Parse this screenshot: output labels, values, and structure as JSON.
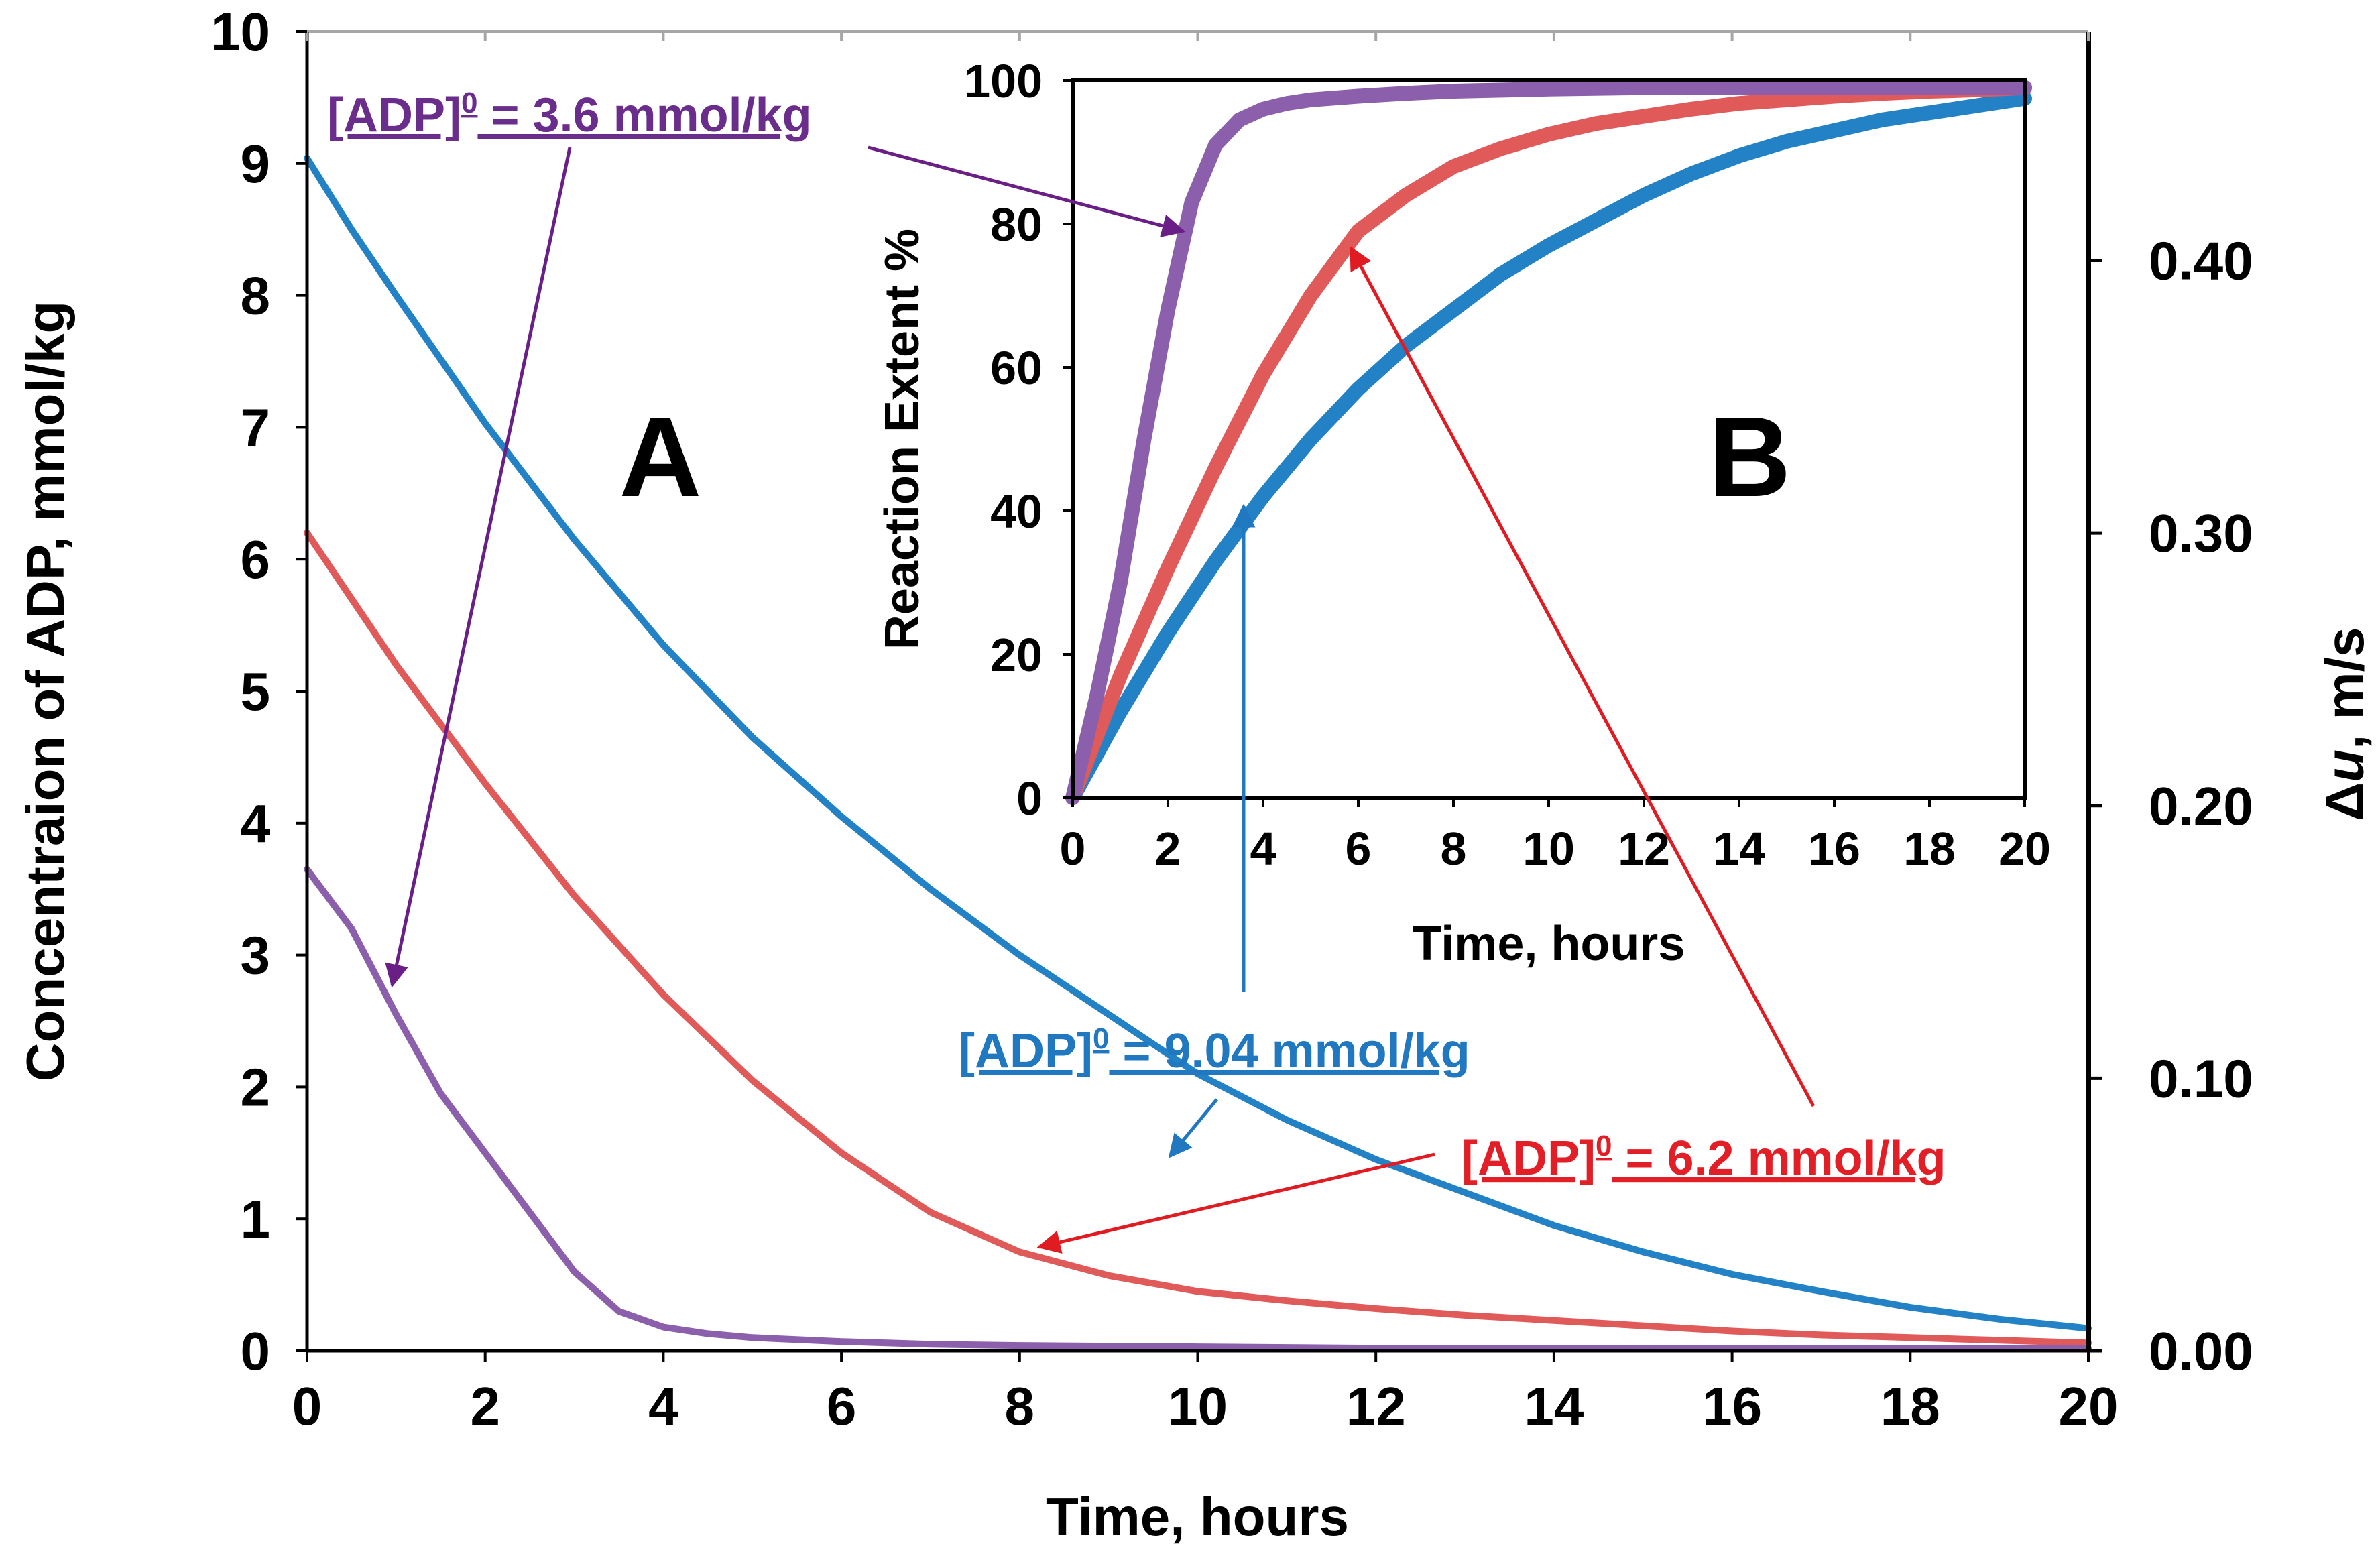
{
  "colors": {
    "blue": "#2382c6",
    "red": "#e05a5a",
    "purple": "#8b5fab",
    "blue_text": "#1f78c0",
    "red_text": "#e21f26",
    "purple_text": "#6b2d8c",
    "blue_arrow": "#1f78c0",
    "red_arrow": "#e11b22",
    "purple_arrow": "#6a1f86",
    "axis": "#000000"
  },
  "chart_data": [
    {
      "panel": "A",
      "type": "line",
      "xlabel": "Time, hours",
      "ylabel": "Concentraion of ADP, mmol/kg",
      "y2label_prefix": "Δ",
      "y2label_var": "u",
      "y2label_suffix": ", m/s",
      "xlim": [
        0,
        20
      ],
      "ylim": [
        0,
        10
      ],
      "y2lim": [
        0.0,
        0.484
      ],
      "xticks": [
        0,
        2,
        4,
        6,
        8,
        10,
        12,
        14,
        16,
        18,
        20
      ],
      "yticks": [
        0,
        1,
        2,
        3,
        4,
        5,
        6,
        7,
        8,
        9,
        10
      ],
      "y2ticks": [
        0.0,
        0.1,
        0.2,
        0.3,
        0.4
      ],
      "y2tick_labels": [
        "0.00",
        "0.10",
        "0.20",
        "0.30",
        "0.40"
      ],
      "series": [
        {
          "name": "[ADP]0 = 9.04 mmol/kg",
          "color_key": "blue",
          "x": [
            0,
            0.5,
            1,
            2,
            3,
            4,
            5,
            6,
            7,
            8,
            9,
            10,
            11,
            12,
            13,
            14,
            15,
            16,
            17,
            18,
            19,
            20
          ],
          "y": [
            9.04,
            8.5,
            8.0,
            7.03,
            6.15,
            5.35,
            4.65,
            4.05,
            3.5,
            3.0,
            2.55,
            2.1,
            1.75,
            1.45,
            1.2,
            0.95,
            0.75,
            0.58,
            0.45,
            0.33,
            0.24,
            0.17
          ]
        },
        {
          "name": "[ADP]0 = 6.2 mmol/kg",
          "color_key": "red",
          "x": [
            0,
            0.5,
            1,
            2,
            3,
            4,
            5,
            6,
            7,
            8,
            9,
            10,
            11,
            12,
            13,
            14,
            15,
            16,
            17,
            18,
            19,
            20
          ],
          "y": [
            6.2,
            5.7,
            5.2,
            4.3,
            3.45,
            2.7,
            2.05,
            1.5,
            1.05,
            0.75,
            0.57,
            0.45,
            0.38,
            0.32,
            0.27,
            0.23,
            0.19,
            0.15,
            0.12,
            0.1,
            0.08,
            0.06
          ]
        },
        {
          "name": "[ADP]0 = 3.6 mmol/kg",
          "color_key": "purple",
          "x": [
            0,
            0.5,
            1,
            1.5,
            2,
            2.5,
            3,
            3.5,
            4,
            4.5,
            5,
            6,
            7,
            8,
            10,
            12,
            14,
            16,
            18,
            20
          ],
          "y": [
            3.65,
            3.2,
            2.55,
            1.95,
            1.5,
            1.05,
            0.6,
            0.3,
            0.18,
            0.13,
            0.1,
            0.07,
            0.05,
            0.04,
            0.03,
            0.02,
            0.02,
            0.02,
            0.02,
            0.02
          ]
        }
      ]
    },
    {
      "panel": "B",
      "type": "line",
      "xlabel": "Time, hours",
      "ylabel": "Reaction Extent %",
      "xlim": [
        0,
        20
      ],
      "ylim": [
        0,
        100
      ],
      "xticks": [
        0,
        2,
        4,
        6,
        8,
        10,
        12,
        14,
        16,
        18,
        20
      ],
      "yticks": [
        0,
        20,
        40,
        60,
        80,
        100
      ],
      "series": [
        {
          "name": "[ADP]0 = 9.04 mmol/kg",
          "color_key": "blue",
          "x": [
            0,
            1,
            2,
            3,
            4,
            5,
            6,
            7,
            8,
            9,
            10,
            11,
            12,
            13,
            14,
            15,
            16,
            17,
            18,
            19,
            20
          ],
          "y": [
            0,
            12,
            23,
            33,
            42,
            50,
            57,
            63,
            68,
            73,
            77,
            80.5,
            84,
            87,
            89.5,
            91.5,
            93,
            94.5,
            95.5,
            96.5,
            97.5
          ]
        },
        {
          "name": "[ADP]0 = 6.2 mmol/kg",
          "color_key": "red",
          "x": [
            0,
            1,
            2,
            3,
            4,
            5,
            6,
            7,
            8,
            9,
            10,
            11,
            12,
            13,
            14,
            15,
            16,
            17,
            18,
            19,
            20
          ],
          "y": [
            0,
            17,
            32,
            46,
            59,
            70,
            79,
            84,
            88,
            90.5,
            92.5,
            94,
            95,
            96,
            96.8,
            97.3,
            97.8,
            98.2,
            98.5,
            98.7,
            99
          ]
        },
        {
          "name": "[ADP]0 = 3.6 mmol/kg",
          "color_key": "purple",
          "x": [
            0,
            0.5,
            1,
            1.5,
            2,
            2.5,
            3,
            3.5,
            4,
            4.5,
            5,
            6,
            7,
            8,
            10,
            12,
            14,
            16,
            18,
            20
          ],
          "y": [
            0,
            14,
            30,
            50,
            68,
            83,
            91,
            94.5,
            96,
            96.8,
            97.3,
            97.8,
            98.2,
            98.5,
            98.8,
            99,
            99,
            99,
            99,
            99
          ]
        }
      ]
    }
  ],
  "panel_labels": {
    "a": "A",
    "b": "B"
  },
  "annotations": {
    "purple": {
      "prefix": "[ADP]",
      "sup": "0",
      "suffix": " = 3.6 mmol/kg"
    },
    "blue": {
      "prefix": "[ADP]",
      "sup": "0",
      "suffix": " = 9.04 mmol/kg"
    },
    "red": {
      "prefix": "[ADP]",
      "sup": "0",
      "suffix": " = 6.2 mmol/kg"
    }
  }
}
